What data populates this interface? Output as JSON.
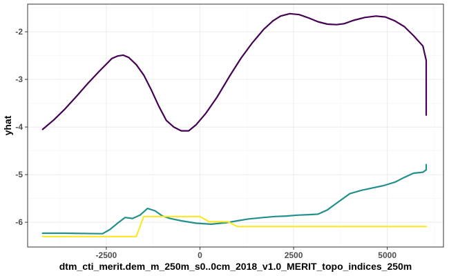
{
  "chart_data": {
    "type": "line",
    "title": "",
    "xlabel": "dtm_cti_merit.dem_m_250m_s0..0cm_2018_v1.0_MERIT_topo_indices_250m",
    "ylabel": "yhat",
    "xlim": [
      -4600,
      6500
    ],
    "ylim": [
      -6.52,
      -1.42
    ],
    "x_ticks": [
      -2500,
      0,
      2500,
      5000
    ],
    "x_tick_labels": [
      "-2500",
      "0",
      "2500",
      "5000"
    ],
    "y_ticks": [
      -6,
      -5,
      -4,
      -3,
      -2
    ],
    "y_tick_labels": [
      "-6",
      "-5",
      "-4",
      "-3",
      "-2"
    ],
    "grid": true,
    "legend": "none",
    "series": [
      {
        "color": "#440154",
        "points": [
          [
            -4200,
            -4.05
          ],
          [
            -3900,
            -3.85
          ],
          [
            -3600,
            -3.62
          ],
          [
            -3300,
            -3.36
          ],
          [
            -3000,
            -3.09
          ],
          [
            -2700,
            -2.84
          ],
          [
            -2500,
            -2.68
          ],
          [
            -2350,
            -2.56
          ],
          [
            -2200,
            -2.51
          ],
          [
            -2050,
            -2.49
          ],
          [
            -1900,
            -2.54
          ],
          [
            -1700,
            -2.69
          ],
          [
            -1500,
            -2.91
          ],
          [
            -1300,
            -3.22
          ],
          [
            -1100,
            -3.56
          ],
          [
            -900,
            -3.86
          ],
          [
            -700,
            -4.0
          ],
          [
            -500,
            -4.08
          ],
          [
            -300,
            -4.08
          ],
          [
            -100,
            -3.95
          ],
          [
            150,
            -3.72
          ],
          [
            450,
            -3.38
          ],
          [
            800,
            -2.92
          ],
          [
            1100,
            -2.55
          ],
          [
            1400,
            -2.23
          ],
          [
            1700,
            -1.95
          ],
          [
            1950,
            -1.77
          ],
          [
            2150,
            -1.67
          ],
          [
            2400,
            -1.62
          ],
          [
            2650,
            -1.64
          ],
          [
            2900,
            -1.71
          ],
          [
            3150,
            -1.79
          ],
          [
            3400,
            -1.84
          ],
          [
            3650,
            -1.85
          ],
          [
            3850,
            -1.83
          ],
          [
            4100,
            -1.76
          ],
          [
            4400,
            -1.7
          ],
          [
            4700,
            -1.67
          ],
          [
            4950,
            -1.69
          ],
          [
            5200,
            -1.77
          ],
          [
            5450,
            -1.89
          ],
          [
            5700,
            -2.08
          ],
          [
            5950,
            -2.3
          ],
          [
            6200,
            -2.6
          ],
          [
            6500,
            -2.92
          ],
          [
            6800,
            -3.3
          ],
          [
            7050,
            -3.75
          ]
        ]
      },
      {
        "color": "#21908C",
        "points": [
          [
            -4200,
            -6.23
          ],
          [
            -3600,
            -6.23
          ],
          [
            -2600,
            -6.24
          ],
          [
            -2400,
            -6.15
          ],
          [
            -2200,
            -6.02
          ],
          [
            -2000,
            -5.9
          ],
          [
            -1800,
            -5.92
          ],
          [
            -1600,
            -5.85
          ],
          [
            -1400,
            -5.71
          ],
          [
            -1200,
            -5.76
          ],
          [
            -1000,
            -5.87
          ],
          [
            -800,
            -5.92
          ],
          [
            -500,
            -5.97
          ],
          [
            -100,
            -6.02
          ],
          [
            300,
            -6.04
          ],
          [
            700,
            -6.01
          ],
          [
            1000,
            -5.97
          ],
          [
            1300,
            -5.93
          ],
          [
            1700,
            -5.9
          ],
          [
            2000,
            -5.88
          ],
          [
            2300,
            -5.87
          ],
          [
            2600,
            -5.85
          ],
          [
            2900,
            -5.84
          ],
          [
            3150,
            -5.83
          ],
          [
            3400,
            -5.74
          ],
          [
            3700,
            -5.57
          ],
          [
            4000,
            -5.4
          ],
          [
            4300,
            -5.33
          ],
          [
            4600,
            -5.28
          ],
          [
            4900,
            -5.23
          ],
          [
            5200,
            -5.16
          ],
          [
            5450,
            -5.06
          ],
          [
            5700,
            -4.97
          ],
          [
            5950,
            -4.95
          ],
          [
            6200,
            -4.9
          ],
          [
            6450,
            -4.84
          ],
          [
            6700,
            -4.79
          ],
          [
            7000,
            -4.8
          ],
          [
            7300,
            -4.82
          ],
          [
            7050,
            -4.85
          ]
        ]
      },
      {
        "color": "#FDE725",
        "points": [
          [
            -4200,
            -6.3
          ],
          [
            -1700,
            -6.3
          ],
          [
            -1500,
            -5.88
          ],
          [
            -1000,
            -5.88
          ],
          [
            -500,
            -5.88
          ],
          [
            0,
            -5.88
          ],
          [
            250,
            -5.99
          ],
          [
            750,
            -5.99
          ],
          [
            1000,
            -6.09
          ],
          [
            3000,
            -6.09
          ],
          [
            5000,
            -6.09
          ],
          [
            7050,
            -6.09
          ]
        ]
      }
    ]
  }
}
